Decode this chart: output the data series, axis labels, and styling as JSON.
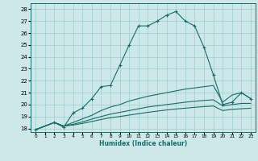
{
  "xlabel": "Humidex (Indice chaleur)",
  "bg_color": "#cce8e8",
  "grid_color": "#9ecece",
  "line_color": "#1a6b6b",
  "xlim": [
    -0.5,
    23.5
  ],
  "ylim": [
    17.7,
    28.5
  ],
  "xtick_labels": [
    "0",
    "1",
    "2",
    "3",
    "4",
    "5",
    "6",
    "7",
    "8",
    "9",
    "10",
    "11",
    "12",
    "13",
    "14",
    "15",
    "16",
    "17",
    "18",
    "19",
    "20",
    "21",
    "22",
    "23"
  ],
  "xtick_vals": [
    0,
    1,
    2,
    3,
    4,
    5,
    6,
    7,
    8,
    9,
    10,
    11,
    12,
    13,
    14,
    15,
    16,
    17,
    18,
    19,
    20,
    21,
    22,
    23
  ],
  "yticks": [
    18,
    19,
    20,
    21,
    22,
    23,
    24,
    25,
    26,
    27,
    28
  ],
  "line_main_x": [
    0,
    2,
    3,
    4,
    5,
    6,
    7,
    8,
    9,
    10,
    11,
    12,
    13,
    14,
    15,
    16,
    17,
    18,
    19,
    20,
    21,
    22,
    23
  ],
  "line_main_y": [
    17.9,
    18.5,
    18.1,
    19.3,
    19.7,
    20.5,
    21.5,
    21.6,
    23.3,
    25.0,
    26.6,
    26.6,
    27.0,
    27.5,
    27.8,
    27.0,
    26.6,
    24.8,
    22.5,
    20.0,
    20.2,
    21.0,
    20.5
  ],
  "line2_x": [
    0,
    2,
    3,
    4,
    5,
    6,
    7,
    8,
    9,
    10,
    11,
    12,
    13,
    14,
    15,
    16,
    17,
    18,
    19,
    20,
    21,
    22,
    23
  ],
  "line2_y": [
    17.9,
    18.5,
    18.2,
    18.5,
    18.8,
    19.1,
    19.5,
    19.8,
    20.0,
    20.3,
    20.5,
    20.7,
    20.85,
    21.0,
    21.15,
    21.3,
    21.4,
    21.5,
    21.6,
    20.2,
    20.8,
    21.0,
    20.5
  ],
  "line3_x": [
    0,
    2,
    3,
    4,
    5,
    6,
    7,
    8,
    9,
    10,
    11,
    12,
    13,
    14,
    15,
    16,
    17,
    18,
    19,
    20,
    21,
    22,
    23
  ],
  "line3_y": [
    17.9,
    18.5,
    18.2,
    18.35,
    18.55,
    18.78,
    19.0,
    19.2,
    19.35,
    19.5,
    19.65,
    19.8,
    19.9,
    20.0,
    20.1,
    20.2,
    20.28,
    20.35,
    20.4,
    19.9,
    20.0,
    20.1,
    20.1
  ],
  "line4_x": [
    0,
    2,
    3,
    4,
    5,
    6,
    7,
    8,
    9,
    10,
    11,
    12,
    13,
    14,
    15,
    16,
    17,
    18,
    19,
    20,
    21,
    22,
    23
  ],
  "line4_y": [
    17.9,
    18.5,
    18.2,
    18.28,
    18.42,
    18.58,
    18.75,
    18.9,
    19.0,
    19.12,
    19.24,
    19.35,
    19.45,
    19.55,
    19.63,
    19.7,
    19.77,
    19.83,
    19.88,
    19.5,
    19.6,
    19.65,
    19.7
  ]
}
